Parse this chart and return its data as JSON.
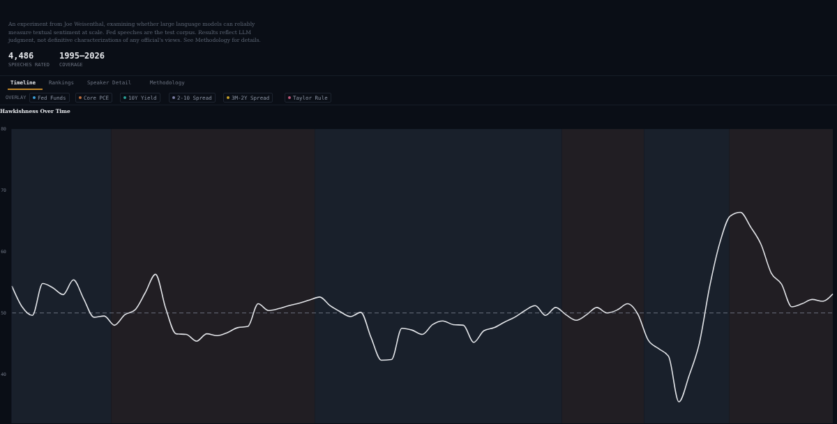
{
  "chart_data": {
    "type": "line",
    "title": "Hawkishness Over Time",
    "annotations": [
      "An experiment from Joe Weisenthal, examining whether large language models can reliably measure textual sentiment at scale. Fed speeches are the test corpus. Results reflect LLM judgment, not definitive characterizations of any official's views. See Methodology for details.",
      "4,486",
      "SPEECHES RATED",
      "1995–2026",
      "COVERAGE",
      "Timeline",
      "Rankings",
      "Speaker Detail",
      "Methodology",
      "OVERLAY",
      "Fed Funds",
      "Core PCE",
      "10Y Yield",
      "2-10 Spread",
      "3M-2Y Spread",
      "Taylor Rule"
    ],
    "categories": [
      null,
      null,
      null,
      null,
      null,
      null,
      null,
      null,
      null,
      null,
      null,
      null,
      null,
      null,
      null,
      null,
      null,
      null,
      null,
      null,
      null,
      null,
      null,
      null,
      null,
      null,
      null,
      null,
      null,
      null,
      null,
      null,
      null,
      null,
      null,
      null,
      null,
      null,
      null,
      null,
      null,
      null,
      null,
      null,
      null,
      null,
      null,
      null,
      null,
      null,
      null,
      null,
      null,
      null,
      null,
      null,
      null,
      null,
      null,
      null,
      null,
      null,
      null,
      null,
      null,
      null,
      null,
      null,
      null,
      null,
      null,
      null,
      null,
      null,
      null,
      null,
      null,
      null,
      null,
      null,
      null
    ],
    "series": [
      {
        "color": "#e5e7eb",
        "values": [
          54.4,
          51.0,
          49.6,
          54.8,
          54.1,
          53.0,
          55.4,
          52.3,
          49.3,
          49.5,
          48.0,
          49.7,
          50.5,
          53.3,
          56.3,
          50.7,
          46.6,
          46.5,
          45.4,
          46.6,
          46.3,
          46.8,
          47.6,
          47.8,
          51.5,
          50.4,
          50.7,
          51.2,
          51.6,
          52.1,
          52.6,
          51.2,
          50.2,
          49.4,
          50.1,
          46.0,
          42.3,
          42.4,
          47.5,
          47.2,
          46.5,
          48.1,
          48.7,
          48.1,
          48.0,
          45.2,
          47.1,
          47.6,
          48.5,
          49.3,
          50.4,
          51.2,
          49.6,
          50.9,
          49.7,
          48.8,
          49.7,
          50.9,
          50.0,
          50.5,
          51.5,
          49.8,
          45.6,
          44.2,
          42.9,
          35.5,
          39.8,
          45.1,
          54.3,
          61.5,
          65.8,
          66.4,
          64.0,
          61.2,
          56.5,
          54.7,
          51.0,
          51.5,
          52.2,
          51.9,
          53.1
        ]
      }
    ],
    "ylim": [
      32,
      80
    ],
    "yticks": [
      40,
      50,
      60,
      70,
      80
    ],
    "tick_labels": "y",
    "ref_lines": [
      {
        "axis": "y",
        "value": 50,
        "color": "#6b7280",
        "line_style": "dashed"
      }
    ]
  }
}
